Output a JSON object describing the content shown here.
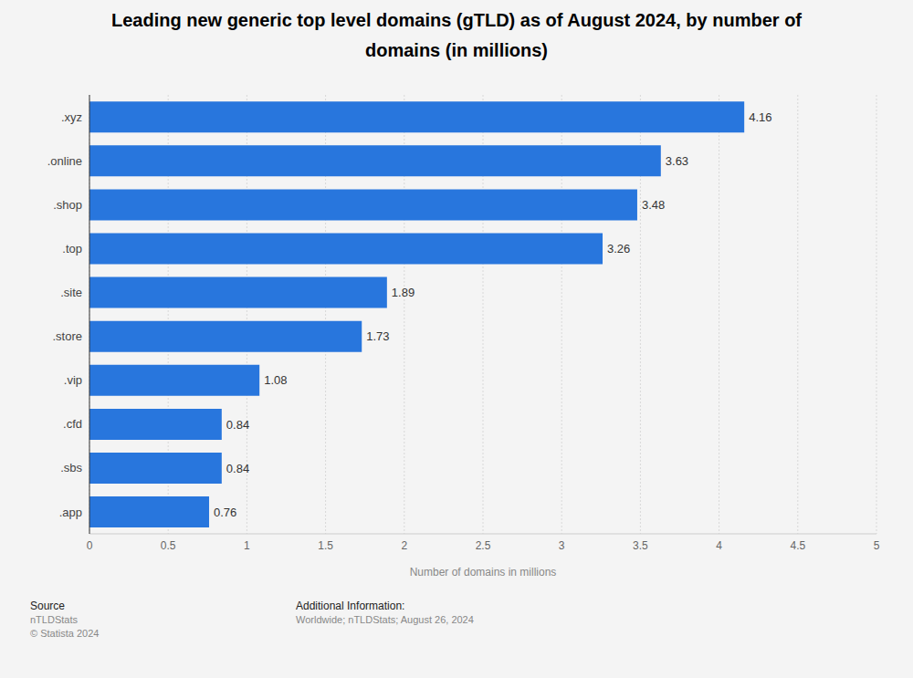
{
  "chart_data": {
    "type": "bar",
    "title": "Leading new generic top level domains (gTLD) as of August 2024, by number of domains (in millions)",
    "categories": [
      ".xyz",
      ".online",
      ".shop",
      ".top",
      ".site",
      ".store",
      ".vip",
      ".cfd",
      ".sbs",
      ".app"
    ],
    "values": [
      4.16,
      3.63,
      3.48,
      3.26,
      1.89,
      1.73,
      1.08,
      0.84,
      0.84,
      0.76
    ],
    "color": "#2876dd",
    "orientation": "horizontal",
    "data_labels": true,
    "grid": true,
    "xlim": [
      0,
      5
    ],
    "xticks": [
      0,
      0.5,
      1,
      1.5,
      2,
      2.5,
      3,
      3.5,
      4,
      4.5,
      5
    ],
    "xlabel": "Number of domains in millions",
    "source": {
      "label": "Source",
      "text": "nTLDStats",
      "copyright": "© Statista 2024"
    },
    "additional_information": {
      "label": "Additional Information:",
      "text": "Worldwide; nTLDStats; August 26, 2024"
    }
  }
}
